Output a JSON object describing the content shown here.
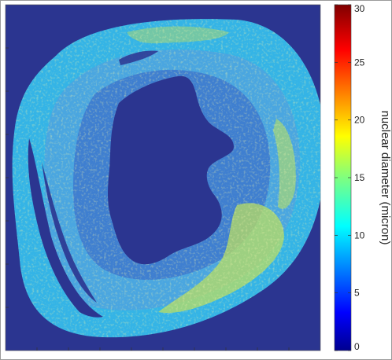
{
  "chart_data": {
    "type": "heatmap",
    "title": "",
    "xlabel": "",
    "ylabel": "",
    "colorbar": {
      "label": "nuclear diameter (micron)",
      "range": [
        0,
        30
      ],
      "ticks": [
        0,
        5,
        10,
        15,
        20,
        25,
        30
      ],
      "tick_labels": [
        "0",
        "5",
        "10",
        "15",
        "20",
        "25",
        "30"
      ],
      "colormap": "jet"
    },
    "background_value": 0,
    "regions": [
      {
        "name": "outer tissue wall",
        "typical_value": 10,
        "range": [
          7,
          20
        ]
      },
      {
        "name": "inner tissue layer",
        "typical_value": 8,
        "range": [
          5,
          12
        ]
      },
      {
        "name": "cavity",
        "typical_value": 0
      }
    ],
    "grid": false
  },
  "colors": {
    "background_dark_blue": "#2b3590",
    "wall_cyan": "#34b4e6",
    "inner_blue": "#3f7fd0",
    "high_yellow": "#e3e53a",
    "frame_gray": "#9a9a9a"
  }
}
